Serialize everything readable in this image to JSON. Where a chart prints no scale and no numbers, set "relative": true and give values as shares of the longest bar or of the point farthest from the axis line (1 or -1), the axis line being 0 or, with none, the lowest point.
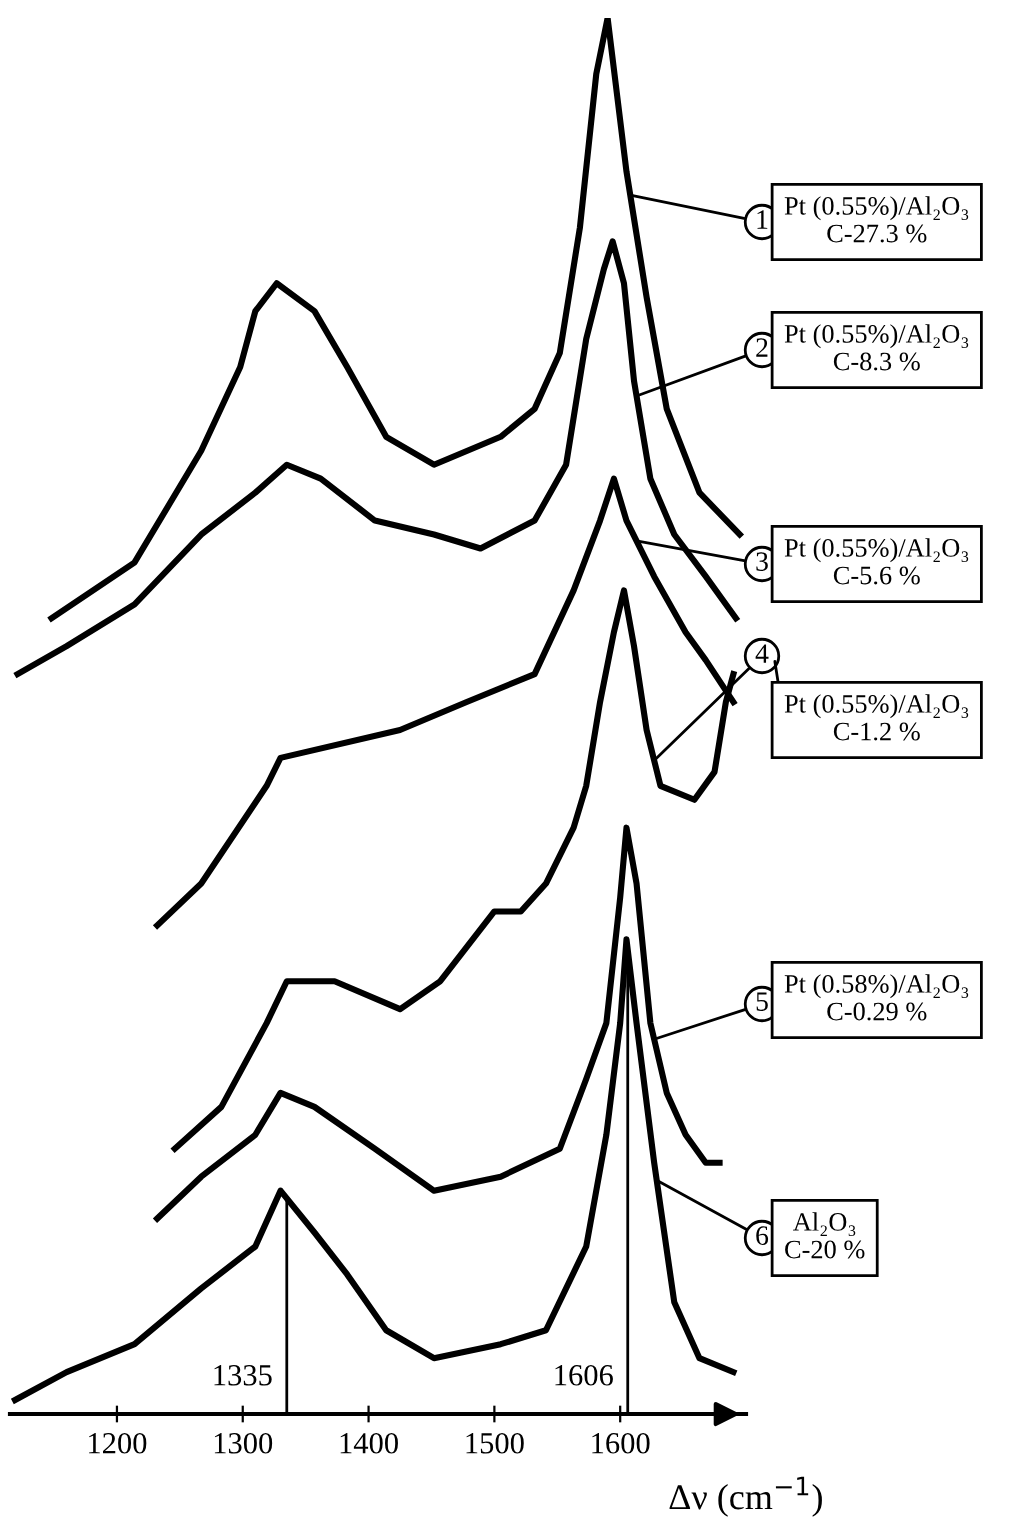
{
  "chart_data": {
    "type": "line",
    "relative": true,
    "xlabel": "Δν (cm$^{−1}$)",
    "xlim": [
      1115,
      1700
    ],
    "xticks": [
      1200,
      1300,
      1400,
      1500,
      1600
    ],
    "grid": false,
    "legend": "right",
    "marker": "none",
    "line_style": "solid",
    "ref_lines": [
      {
        "axis": "x",
        "value": 1335,
        "label": "1335",
        "color": "#000000"
      },
      {
        "axis": "x",
        "value": 1606,
        "label": "1606",
        "color": "#000000"
      }
    ],
    "annotations": [
      "1",
      "2",
      "3",
      "4",
      "5",
      "6"
    ],
    "series": [
      {
        "name": "Pt (0.55%)/Al₂O₃\nC-27.3 %",
        "color": "#000000",
        "x": [
          1148,
          1214,
          1267,
          1298,
          1310,
          1327,
          1357,
          1383,
          1414,
          1452,
          1505,
          1532,
          1552,
          1568,
          1581,
          1590,
          1605,
          1621,
          1637,
          1663,
          1695
        ],
        "values": [
          0.57,
          0.61,
          0.69,
          0.75,
          0.79,
          0.81,
          0.79,
          0.75,
          0.7,
          0.68,
          0.7,
          0.72,
          0.76,
          0.85,
          0.96,
          1.0,
          0.89,
          0.8,
          0.72,
          0.66,
          0.63
        ]
      },
      {
        "name": "Pt (0.55%)/Al₂O₃\nC-8.3 %",
        "color": "#000000",
        "x": [
          1121,
          1160,
          1214,
          1267,
          1310,
          1335,
          1362,
          1405,
          1452,
          1489,
          1532,
          1557,
          1573,
          1587,
          1594,
          1603,
          1611,
          1624,
          1643,
          1668,
          1692
        ],
        "values": [
          0.53,
          0.55,
          0.58,
          0.63,
          0.66,
          0.68,
          0.67,
          0.64,
          0.63,
          0.62,
          0.64,
          0.68,
          0.77,
          0.82,
          0.84,
          0.81,
          0.74,
          0.67,
          0.63,
          0.6,
          0.57
        ]
      },
      {
        "name": "Pt (0.55%)/Al₂O₃\nC-5.6 %",
        "color": "#000000",
        "x": [
          1232,
          1267,
          1319,
          1330,
          1425,
          1478,
          1532,
          1563,
          1584,
          1595,
          1605,
          1627,
          1652,
          1668,
          1690
        ],
        "values": [
          0.35,
          0.38,
          0.45,
          0.47,
          0.49,
          0.51,
          0.53,
          0.59,
          0.64,
          0.67,
          0.64,
          0.6,
          0.56,
          0.54,
          0.51
        ]
      },
      {
        "name": "Pt (0.55%)/Al₂O₃\nC-1.2 %",
        "color": "#000000",
        "x": [
          1246,
          1283,
          1319,
          1335,
          1373,
          1425,
          1457,
          1500,
          1521,
          1541,
          1563,
          1573,
          1584,
          1595,
          1603,
          1611,
          1621,
          1632,
          1659,
          1675,
          1684,
          1690
        ],
        "values": [
          0.19,
          0.22,
          0.28,
          0.31,
          0.31,
          0.29,
          0.31,
          0.36,
          0.36,
          0.38,
          0.42,
          0.45,
          0.51,
          0.56,
          0.59,
          0.55,
          0.49,
          0.45,
          0.44,
          0.46,
          0.51,
          0.53
        ]
      },
      {
        "name": "Pt (0.58%)/Al₂O₃\nC-0.29 %",
        "color": "#000000",
        "x": [
          1232,
          1267,
          1310,
          1330,
          1357,
          1405,
          1452,
          1505,
          1552,
          1573,
          1589,
          1600,
          1605,
          1613,
          1624,
          1637,
          1652,
          1668,
          1679
        ],
        "values": [
          0.14,
          0.17,
          0.2,
          0.23,
          0.22,
          0.19,
          0.16,
          0.17,
          0.19,
          0.24,
          0.28,
          0.37,
          0.42,
          0.38,
          0.28,
          0.23,
          0.2,
          0.18,
          0.18
        ]
      },
      {
        "name": "Al₂O₃\nC-20 %",
        "color": "#000000",
        "x": [
          1119,
          1160,
          1214,
          1267,
          1310,
          1330,
          1357,
          1383,
          1414,
          1452,
          1505,
          1541,
          1573,
          1589,
          1600,
          1605,
          1613,
          1627,
          1643,
          1663,
          1690
        ],
        "values": [
          0.01,
          0.03,
          0.05,
          0.09,
          0.12,
          0.16,
          0.13,
          0.1,
          0.06,
          0.04,
          0.05,
          0.06,
          0.12,
          0.2,
          0.28,
          0.34,
          0.28,
          0.18,
          0.08,
          0.04,
          0.03
        ]
      }
    ]
  }
}
